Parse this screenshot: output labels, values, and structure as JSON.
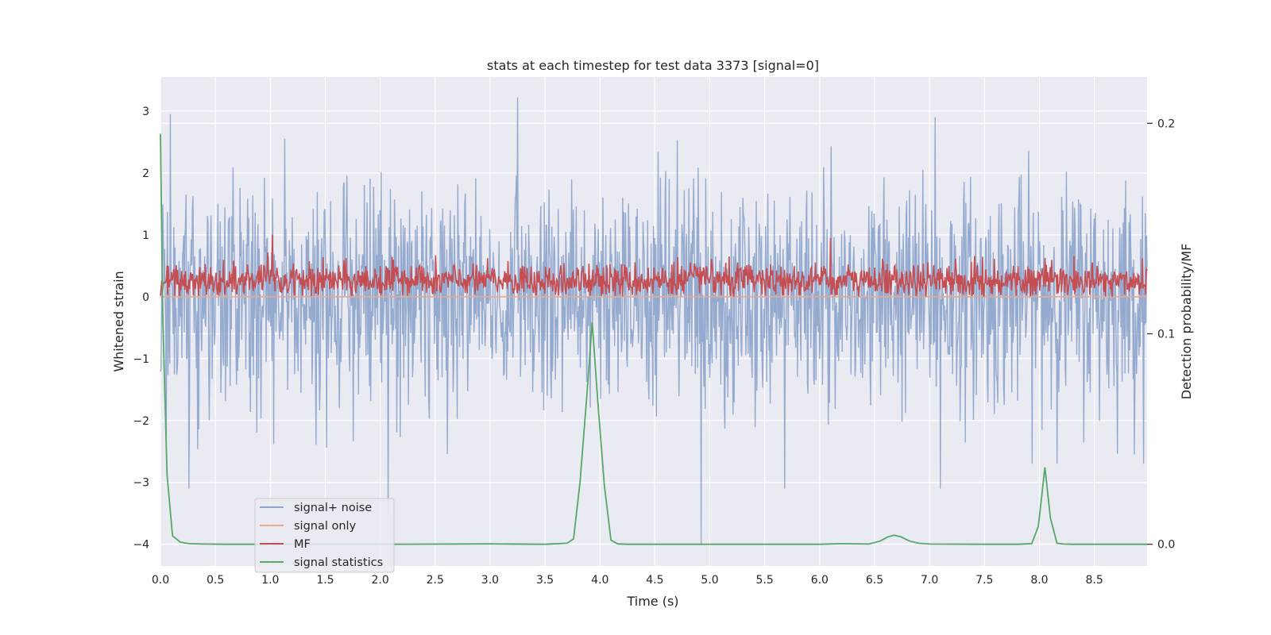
{
  "chart_data": {
    "type": "line",
    "title": "stats at each timestep for test data 3373 [signal=0]",
    "xlabel": "Time (s)",
    "ylabel": "Whitened strain",
    "y2label": "Detection probability/MF",
    "xlim": [
      0,
      8.98
    ],
    "ylim": [
      -4.35,
      3.55
    ],
    "y2lim": [
      -0.0103,
      0.222
    ],
    "x_ticks": [
      0.0,
      0.5,
      1.0,
      1.5,
      2.0,
      2.5,
      3.0,
      3.5,
      4.0,
      4.5,
      5.0,
      5.5,
      6.0,
      6.5,
      7.0,
      7.5,
      8.0,
      8.5
    ],
    "x_tick_labels": [
      "0.0",
      "0.5",
      "1.0",
      "1.5",
      "2.0",
      "2.5",
      "3.0",
      "3.5",
      "4.0",
      "4.5",
      "5.0",
      "5.5",
      "6.0",
      "6.5",
      "7.0",
      "7.5",
      "8.0",
      "8.5"
    ],
    "y_ticks": [
      3,
      2,
      1,
      0,
      -1,
      -2,
      -3,
      -4
    ],
    "y_tick_labels": [
      "3",
      "2",
      "1",
      "0",
      "−1",
      "−2",
      "−3",
      "−4"
    ],
    "y2_ticks": [
      0.2,
      0.1,
      0.0
    ],
    "y2_tick_labels": [
      "0.2",
      "0.1",
      "0.0"
    ],
    "grid": true,
    "legend_position": "lower-left",
    "series": [
      {
        "name": "signal+ noise",
        "axis": "left",
        "color": "#8fa6cc",
        "style": "dense noise, amplitude roughly ±2.5 with spikes to 3.2 at t≈3.25 and −4.0 at t≈4.92",
        "peaks": [
          {
            "x": 0.09,
            "y": 2.95
          },
          {
            "x": 3.25,
            "y": 3.22
          },
          {
            "x": 7.05,
            "y": 2.9
          },
          {
            "x": 2.07,
            "y": -3.5
          },
          {
            "x": 4.92,
            "y": -4.0
          },
          {
            "x": 0.26,
            "y": -3.1
          },
          {
            "x": 5.68,
            "y": -3.1
          },
          {
            "x": 7.1,
            "y": -3.1
          }
        ]
      },
      {
        "name": "signal only",
        "axis": "left",
        "color": "#e8a98c",
        "x": [
          0,
          8.98
        ],
        "y": [
          0,
          0
        ]
      },
      {
        "name": "MF",
        "axis": "left",
        "color": "#c44e52",
        "style": "dense noise between 0 and about 0.6, peaks near 1.0",
        "peaks": [
          {
            "x": 1.02,
            "y": 1.0
          },
          {
            "x": 6.1,
            "y": 0.95
          }
        ]
      },
      {
        "name": "signal statistics",
        "axis": "right",
        "color": "#55a868",
        "x": [
          0,
          0.02,
          0.06,
          0.11,
          0.18,
          0.26,
          0.4,
          0.6,
          1.0,
          2.0,
          3.0,
          3.5,
          3.7,
          3.76,
          3.82,
          3.88,
          3.93,
          3.98,
          4.04,
          4.1,
          4.16,
          4.25,
          5.0,
          6.0,
          6.2,
          6.45,
          6.55,
          6.62,
          6.68,
          6.74,
          6.82,
          6.9,
          7.0,
          7.5,
          7.8,
          7.93,
          7.99,
          8.05,
          8.1,
          8.16,
          8.22,
          8.3,
          8.98
        ],
        "y": [
          0.195,
          0.11,
          0.033,
          0.004,
          0.001,
          0.0003,
          0.0001,
          0.0,
          0.0,
          0.0,
          0.0002,
          0.0,
          0.0005,
          0.0025,
          0.03,
          0.07,
          0.1055,
          0.068,
          0.028,
          0.002,
          0.0002,
          0.0,
          0.0,
          0.0,
          0.0003,
          0.0001,
          0.0015,
          0.0035,
          0.0043,
          0.0035,
          0.0015,
          0.0005,
          0.0001,
          0.0,
          0.0,
          0.0003,
          0.0085,
          0.0365,
          0.0125,
          0.0005,
          0.0001,
          0.0,
          0.0
        ]
      }
    ]
  }
}
